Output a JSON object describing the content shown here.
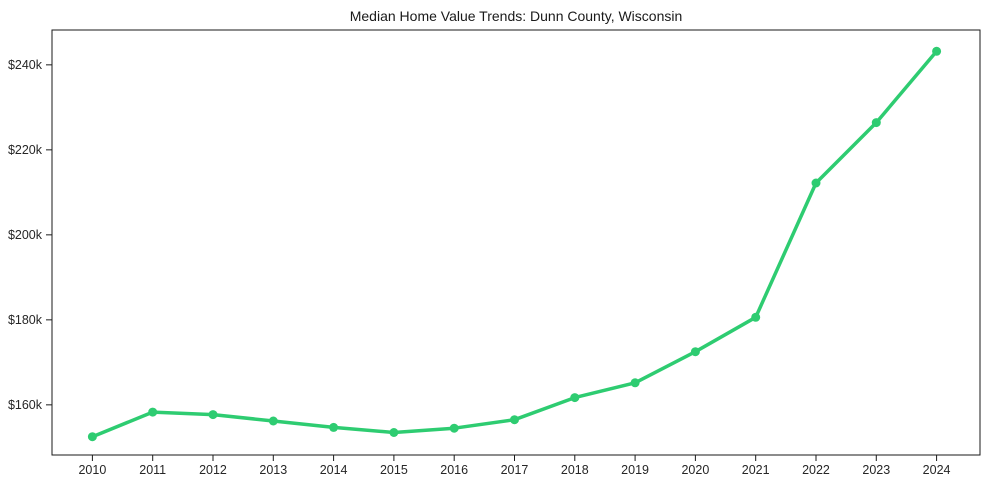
{
  "chart_data": {
    "type": "line",
    "title": "Median Home Value Trends: Dunn County, Wisconsin",
    "xlabel": "",
    "ylabel": "",
    "x": [
      2010,
      2011,
      2012,
      2013,
      2014,
      2015,
      2016,
      2017,
      2018,
      2019,
      2020,
      2021,
      2022,
      2023,
      2024
    ],
    "x_tick_labels": [
      "2010",
      "2011",
      "2012",
      "2013",
      "2014",
      "2015",
      "2016",
      "2017",
      "2018",
      "2019",
      "2020",
      "2021",
      "2022",
      "2023",
      "2024"
    ],
    "values": [
      152500,
      158300,
      157700,
      156200,
      154700,
      153500,
      154500,
      156500,
      161700,
      165200,
      172500,
      180600,
      212200,
      226400,
      243200
    ],
    "y_ticks": [
      {
        "value": 160000,
        "label": "$160k"
      },
      {
        "value": 180000,
        "label": "$180k"
      },
      {
        "value": 200000,
        "label": "$200k"
      },
      {
        "value": 220000,
        "label": "$220k"
      },
      {
        "value": 240000,
        "label": "$240k"
      }
    ],
    "xlim": [
      2009.33,
      2024.72
    ],
    "ylim": [
      148200,
      248200
    ],
    "grid": false,
    "legend": false,
    "colors": {
      "line": "#2ecc71",
      "marker": "#2ecc71",
      "axis": "#1a1a1a",
      "tick_text": "#262626",
      "background": "#ffffff"
    }
  }
}
